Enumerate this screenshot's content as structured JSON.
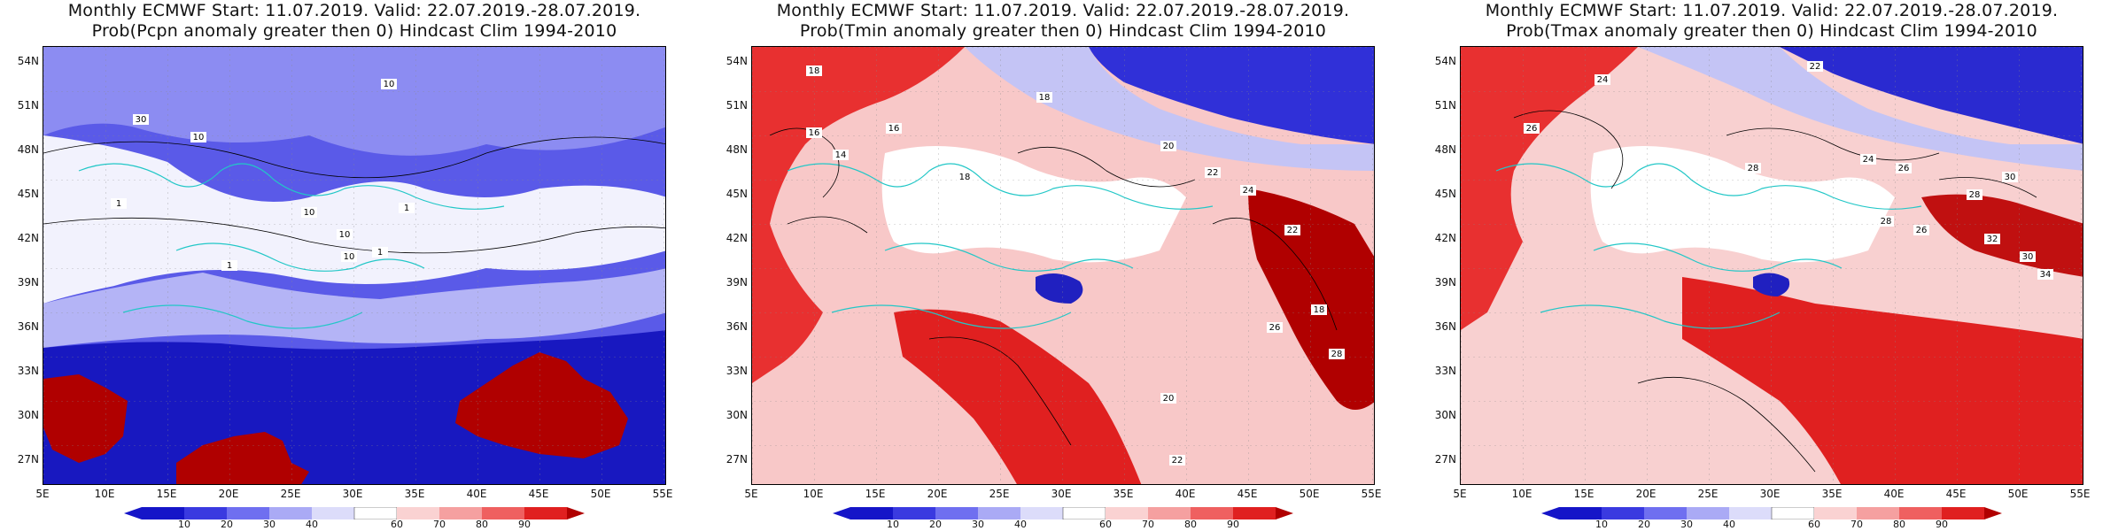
{
  "panels": [
    {
      "title_line1": "Monthly ECMWF Start: 11.07.2019. Valid: 22.07.2019.-28.07.2019.",
      "title_line2": "Prob(Pcpn anomaly greater then 0) Hindcast Clim 1994-2010",
      "variable": "Pcpn",
      "contour_labels": [
        "10",
        "30",
        "10",
        "10",
        "10",
        "1",
        "1",
        "10",
        "1",
        "1"
      ]
    },
    {
      "title_line1": "Monthly ECMWF Start: 11.07.2019. Valid: 22.07.2019.-28.07.2019.",
      "title_line2": "Prob(Tmin anomaly greater then 0) Hindcast Clim 1994-2010",
      "variable": "Tmin",
      "contour_labels": [
        "18",
        "18",
        "16",
        "14",
        "16",
        "18",
        "20",
        "22",
        "24",
        "22",
        "18",
        "28",
        "26",
        "20",
        "22"
      ]
    },
    {
      "title_line1": "Monthly ECMWF Start: 11.07.2019. Valid: 22.07.2019.-28.07.2019.",
      "title_line2": "Prob(Tmax anomaly greater then 0) Hindcast Clim 1994-2010",
      "variable": "Tmax",
      "contour_labels": [
        "22",
        "24",
        "26",
        "28",
        "24",
        "26",
        "30",
        "28",
        "32",
        "30",
        "34",
        "26",
        "28"
      ]
    }
  ],
  "lat_labels": [
    "54N",
    "51N",
    "48N",
    "45N",
    "42N",
    "39N",
    "36N",
    "33N",
    "30N",
    "27N"
  ],
  "lon_labels": [
    "5E",
    "10E",
    "15E",
    "20E",
    "25E",
    "30E",
    "35E",
    "40E",
    "45E",
    "50E",
    "55E"
  ],
  "colorbar_labels": [
    "10",
    "20",
    "30",
    "40",
    "60",
    "70",
    "80",
    "90"
  ],
  "colorbar_colors": [
    "#1515c8",
    "#3a3ae0",
    "#6f6ff0",
    "#aaaaf5",
    "#dcdcfa",
    "#ffffff",
    "#fad2d2",
    "#f5a0a0",
    "#ef6060",
    "#e02020",
    "#b00000"
  ]
}
